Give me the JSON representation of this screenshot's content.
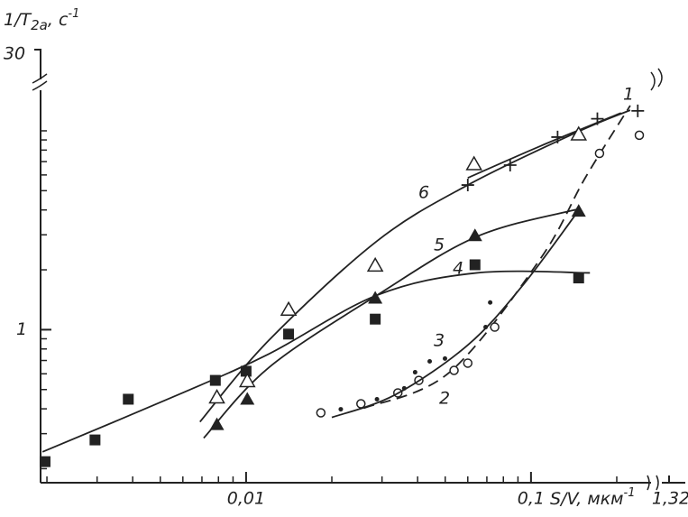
{
  "chart_data": {
    "type": "scatter",
    "x_label": [
      "S/V, мкм",
      "-1"
    ],
    "y_label": [
      "1/T",
      "2a",
      ", с",
      "-1"
    ],
    "break_labels": {
      "x": "1,32",
      "y": "30"
    },
    "log_x": true,
    "log_y": true,
    "minor_ticks": true,
    "xlim": [
      0.0019,
      0.26
    ],
    "ylim": [
      0.17,
      16
    ],
    "xticks": [
      {
        "value": 0.01,
        "label": "0,01"
      },
      {
        "value": 0.1,
        "label": "0,1"
      }
    ],
    "yticks": [
      1
    ],
    "color": "#222",
    "series": [
      {
        "name": "1",
        "marker": "plus",
        "line": "solid",
        "x": [
          0.06,
          0.0845,
          0.124,
          0.171,
          0.237
        ],
        "values": [
          5.34,
          6.72,
          9.3,
          11.5,
          12.6
        ],
        "curve_x": [
          0.06,
          0.1076,
          0.207
        ],
        "curve_y": [
          5.8,
          8.37,
          12.3
        ]
      },
      {
        "name": "2",
        "marker": "open-circle",
        "line": "dashed",
        "x": [
          0.0183,
          0.0253,
          0.0341,
          0.0404,
          0.0537,
          0.06,
          0.0746,
          0.174,
          0.24
        ],
        "values": [
          0.382,
          0.424,
          0.481,
          0.556,
          0.624,
          0.679,
          1.03,
          7.7,
          9.5
        ],
        "curve_x": [
          0.0259,
          0.0518,
          0.1076,
          0.155,
          0.223
        ],
        "curve_y": [
          0.403,
          0.611,
          2.26,
          5.8,
          13.4
        ]
      },
      {
        "name": "3",
        "marker": "dot",
        "line": "solid",
        "x": [
          0.0215,
          0.0288,
          0.0359,
          0.0392,
          0.0441,
          0.0499,
          0.0693,
          0.0719
        ],
        "values": [
          0.398,
          0.447,
          0.507,
          0.611,
          0.693,
          0.716,
          1.03,
          1.37
        ],
        "curve_x": [
          0.02,
          0.0334,
          0.06,
          0.0929,
          0.144
        ],
        "curve_y": [
          0.362,
          0.471,
          0.837,
          1.65,
          3.82
        ]
      },
      {
        "name": "4",
        "marker": "square",
        "line": "solid",
        "x": [
          0.00197,
          0.00295,
          0.00386,
          0.0078,
          0.01,
          0.0141,
          0.0284,
          0.0636,
          0.147
        ],
        "values": [
          0.217,
          0.279,
          0.447,
          0.556,
          0.618,
          0.95,
          1.13,
          2.12,
          1.82
        ],
        "curve_x": [
          0.00193,
          0.00578,
          0.012,
          0.0288,
          0.0646,
          0.161
        ],
        "curve_y": [
          0.243,
          0.471,
          0.754,
          1.49,
          1.93,
          1.93
        ]
      },
      {
        "name": "5",
        "marker": "filled-triangle",
        "line": "solid",
        "x": [
          0.0079,
          0.0101,
          0.0284,
          0.0636,
          0.147
        ],
        "values": [
          0.333,
          0.447,
          1.44,
          2.97,
          3.94
        ],
        "curve_x": [
          0.0071,
          0.012,
          0.0288,
          0.0646,
          0.144
        ],
        "curve_y": [
          0.285,
          0.644,
          1.49,
          2.94,
          4.02
        ]
      },
      {
        "name": "6",
        "marker": "open-triangle",
        "line": "solid",
        "x": [
          0.0079,
          0.0101,
          0.0141,
          0.0284,
          0.0631,
          0.147
        ],
        "values": [
          0.456,
          0.551,
          1.26,
          2.1,
          6.79,
          9.59
        ],
        "curve_x": [
          0.00689,
          0.012,
          0.0288,
          0.06,
          0.144,
          0.223
        ],
        "curve_y": [
          0.344,
          0.882,
          2.79,
          5.34,
          9.8,
          12.7
        ]
      }
    ]
  }
}
